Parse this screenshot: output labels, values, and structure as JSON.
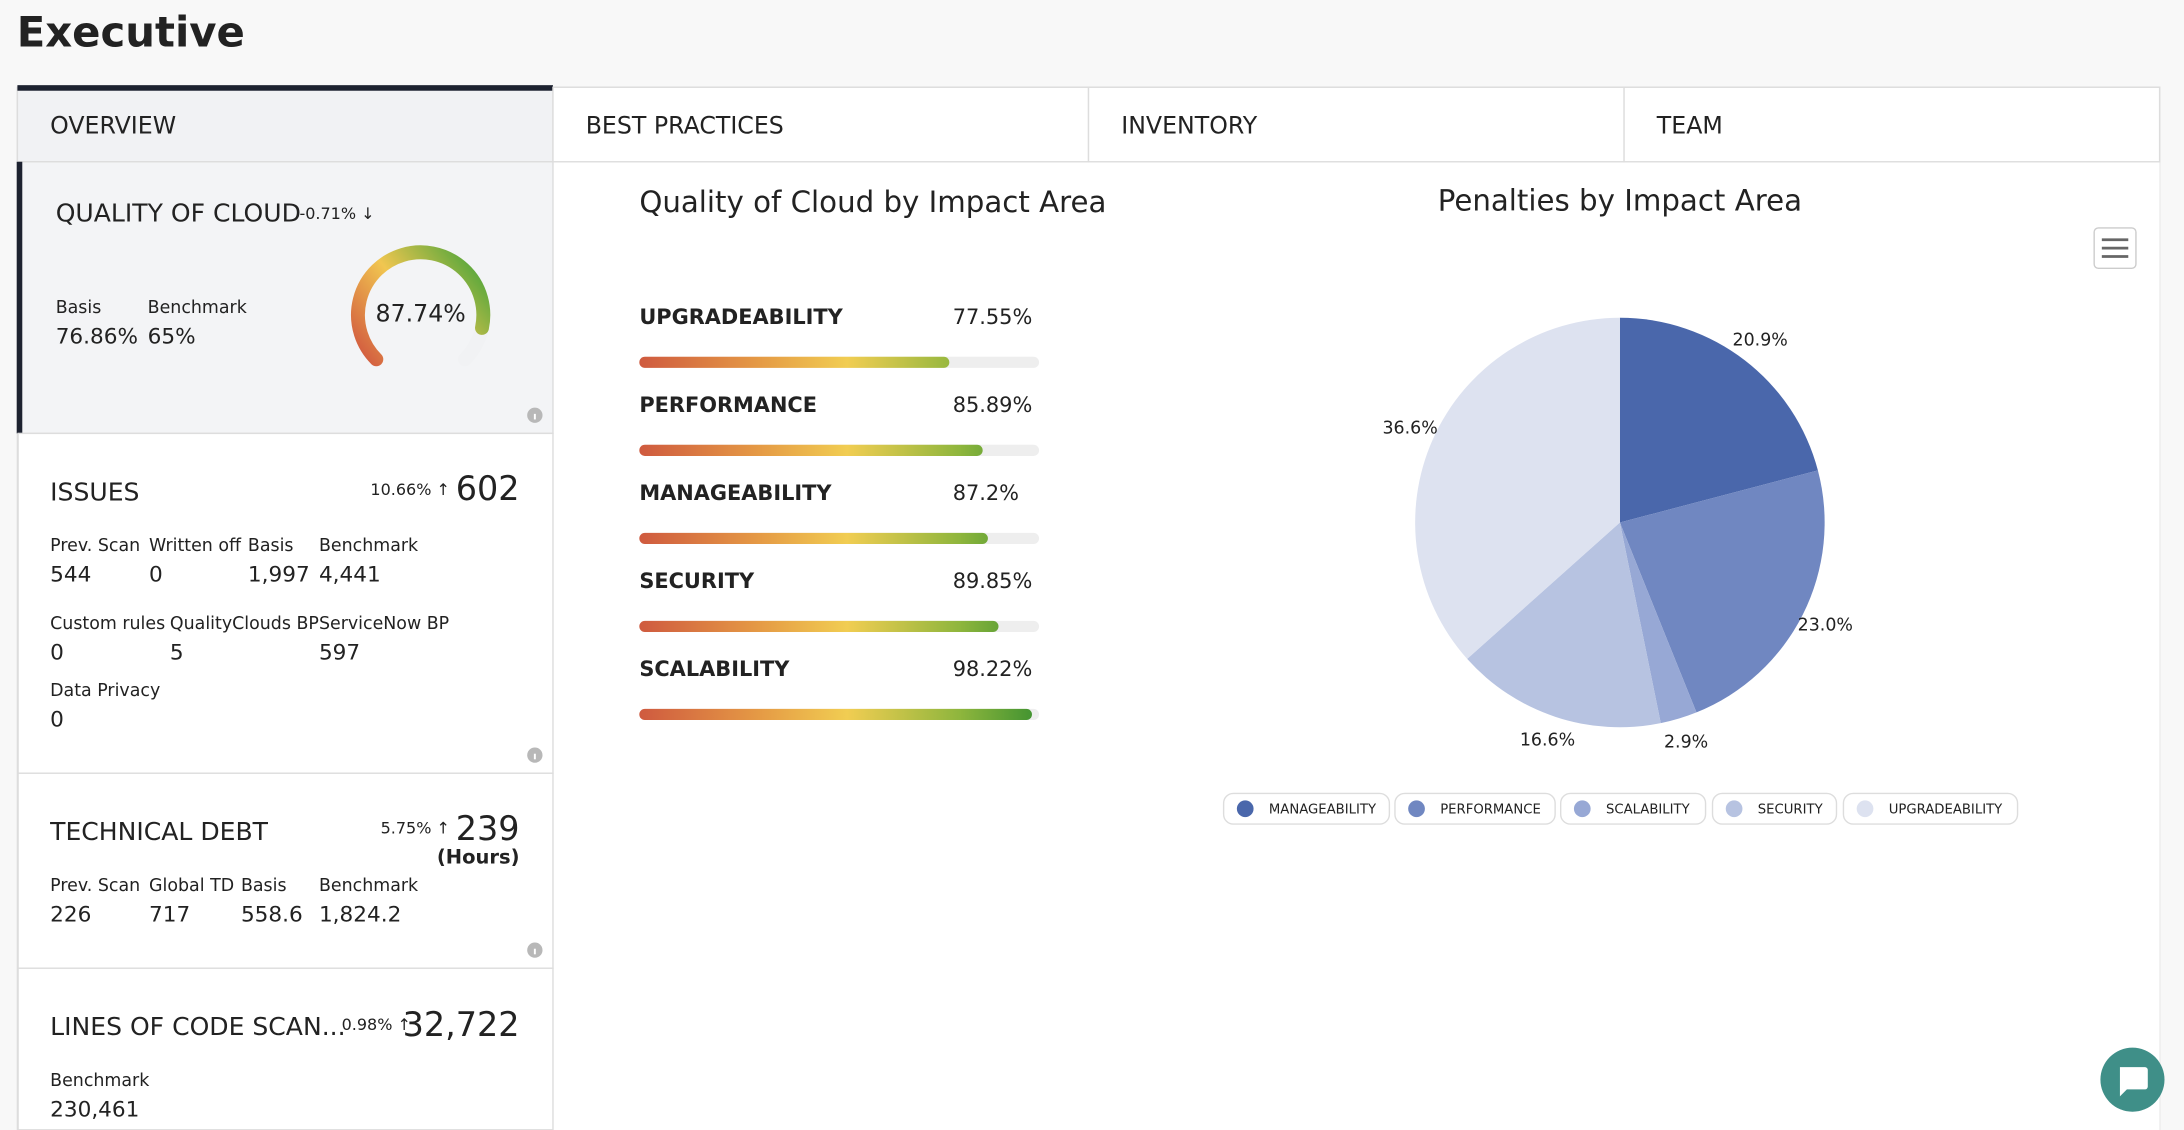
{
  "header": {
    "title": "Executive"
  },
  "tabs": [
    "OVERVIEW",
    "BEST PRACTICES",
    "INVENTORY",
    "TEAM"
  ],
  "cards": [
    {
      "title": "QUALITY OF CLOUD",
      "trend": "-0.71% ↓",
      "stats": [
        {
          "label": "Basis",
          "value": "76.86%"
        },
        {
          "label": "Benchmark",
          "value": "65%"
        }
      ],
      "gauge": {
        "value": 87.74,
        "label": "87.74%"
      }
    },
    {
      "title": "ISSUES",
      "trend": "10.66% ↑",
      "total": "602",
      "stats": [
        {
          "label": "Prev. Scan",
          "value": "544"
        },
        {
          "label": "Written off",
          "value": "0"
        },
        {
          "label": "Basis",
          "value": "1,997"
        },
        {
          "label": "Benchmark",
          "value": "4,441"
        },
        {
          "label": "Custom rules",
          "value": "0"
        },
        {
          "label": "QualityClouds BP",
          "value": "5"
        },
        {
          "label": "ServiceNow BP",
          "value": "597"
        },
        {
          "label": "Data Privacy",
          "value": "0"
        }
      ]
    },
    {
      "title": "TECHNICAL DEBT",
      "trend": "5.75% ↑",
      "total": "239",
      "unit": "(Hours)",
      "stats": [
        {
          "label": "Prev. Scan",
          "value": "226"
        },
        {
          "label": "Global TD",
          "value": "717"
        },
        {
          "label": "Basis",
          "value": "558.6"
        },
        {
          "label": "Benchmark",
          "value": "1,824.2"
        }
      ]
    },
    {
      "title": "LINES OF CODE SCAN...",
      "trend": "0.98% ↑",
      "total": "32,722",
      "stats": [
        {
          "label": "Benchmark",
          "value": "230,461"
        }
      ]
    }
  ],
  "impact_bars": {
    "title": "Quality of Cloud by Impact Area",
    "categories": [
      "UPGRADEABILITY",
      "PERFORMANCE",
      "MANAGEABILITY",
      "SECURITY",
      "SCALABILITY"
    ],
    "values": [
      77.55,
      85.89,
      87.2,
      89.85,
      98.22
    ],
    "value_labels": [
      "77.55%",
      "85.89%",
      "87.2%",
      "89.85%",
      "98.22%"
    ],
    "xlim": [
      0,
      100
    ]
  },
  "chart_data": {
    "type": "pie",
    "title": "Penalties by Impact Area",
    "categories": [
      "MANAGEABILITY",
      "PERFORMANCE",
      "SCALABILITY",
      "SECURITY",
      "UPGRADEABILITY"
    ],
    "values": [
      20.9,
      23.0,
      2.9,
      16.6,
      36.6
    ],
    "value_labels": [
      "20.9%",
      "23.0%",
      "2.9%",
      "16.6%",
      "36.6%"
    ],
    "colors": [
      "#4a67ab",
      "#7087c1",
      "#97a8d5",
      "#b7c3e1",
      "#dde2f0"
    ],
    "legend": "bottom"
  }
}
